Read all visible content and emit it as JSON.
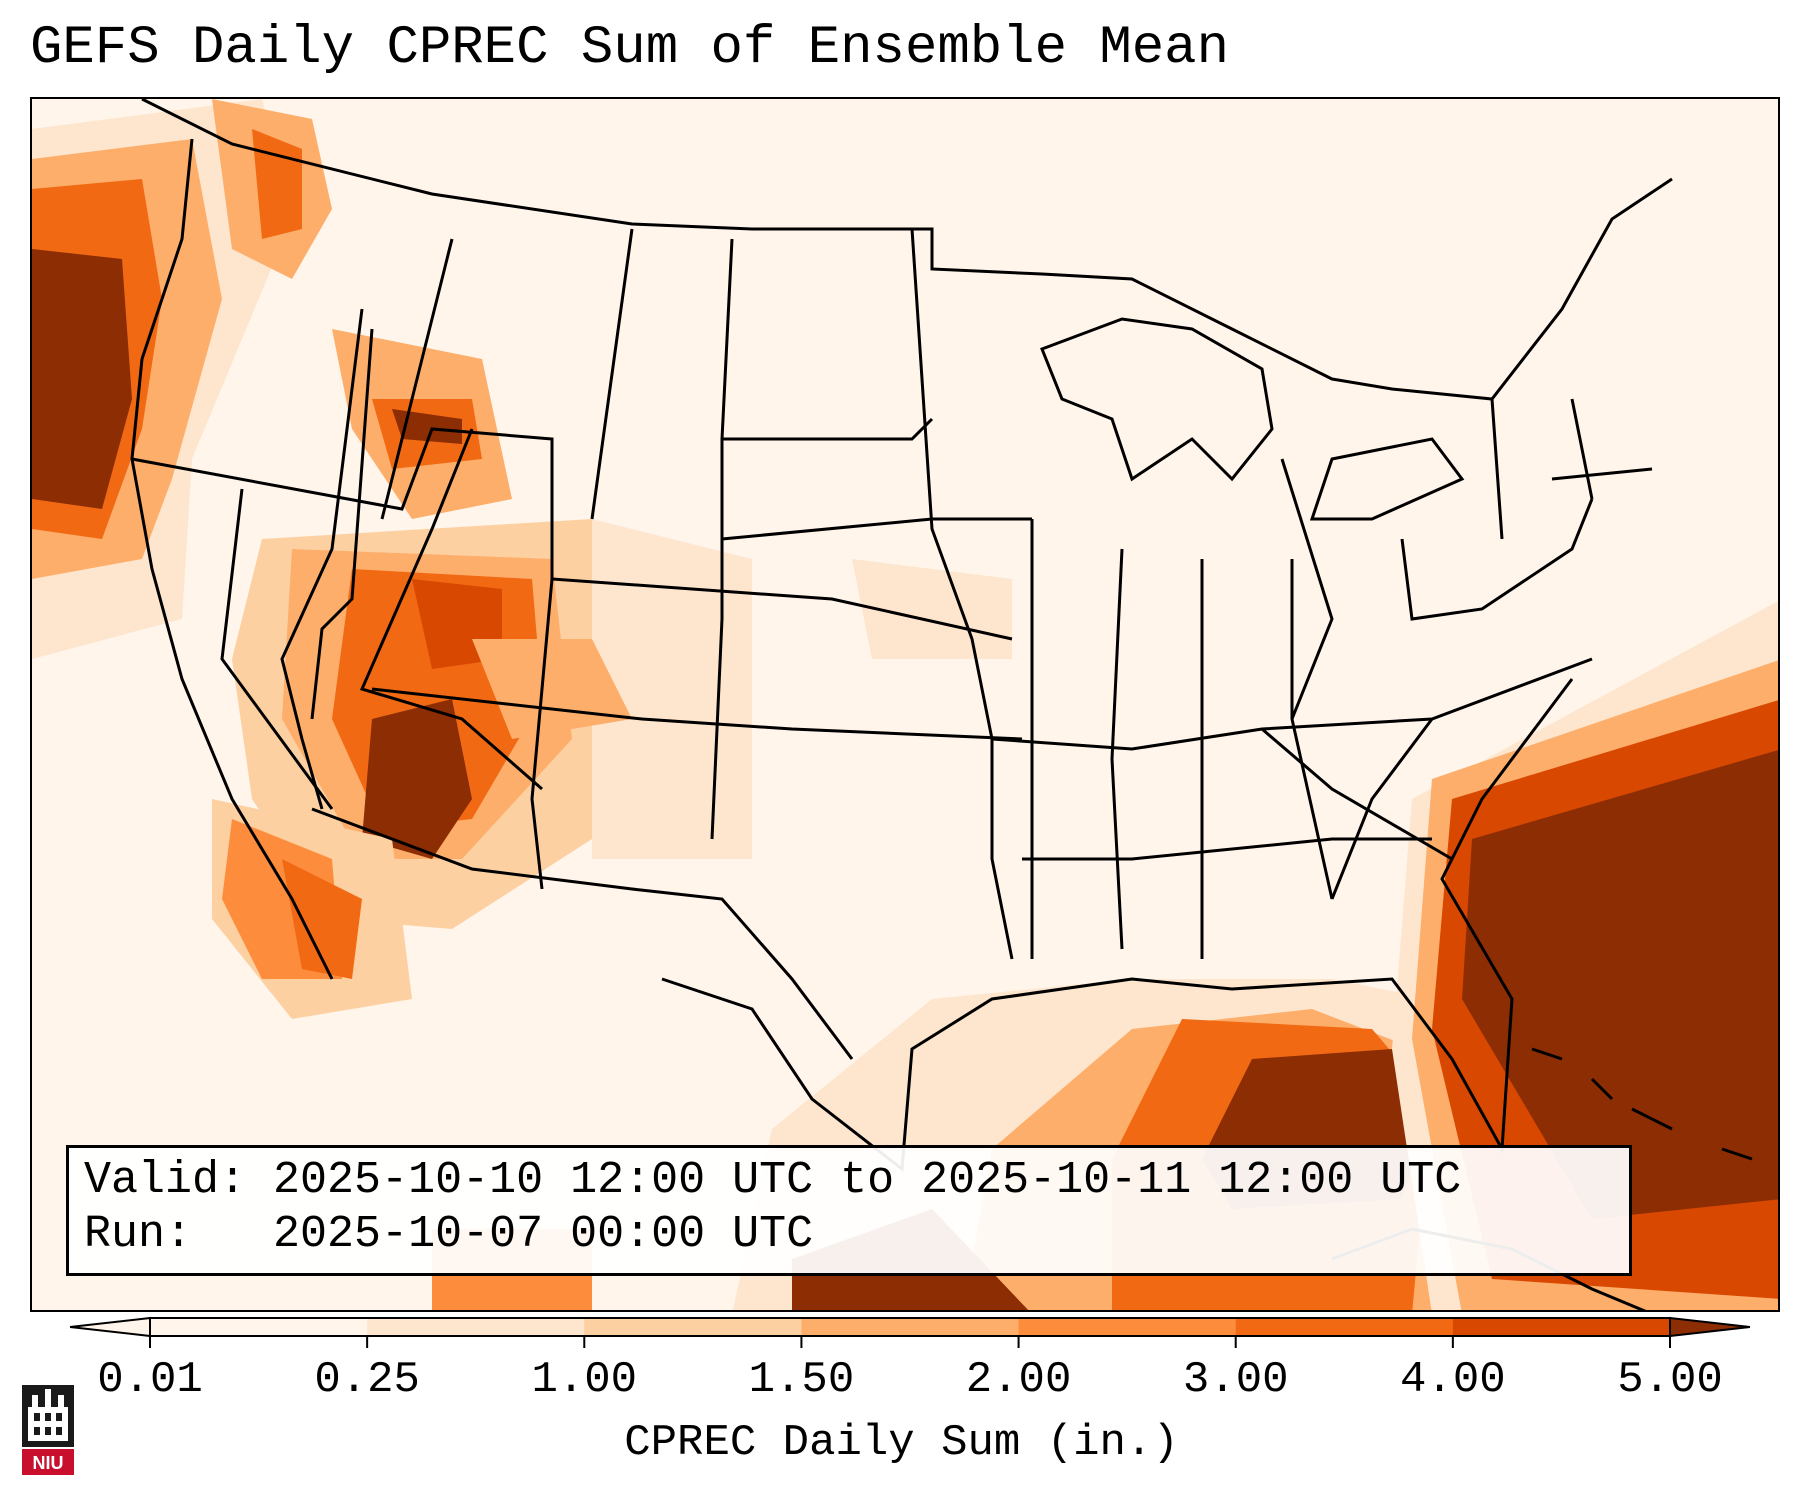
{
  "title": "GEFS Daily CPREC Sum of Ensemble Mean",
  "info": {
    "valid_label": "Valid:",
    "valid_value": "2025-10-10 12:00 UTC to 2025-10-11 12:00 UTC",
    "run_label": "Run:",
    "run_value": "2025-10-07 00:00 UTC"
  },
  "colorbar": {
    "label": "CPREC Daily Sum (in.)",
    "ticks": [
      "0.01",
      "0.25",
      "1.00",
      "1.50",
      "2.00",
      "3.00",
      "4.00",
      "5.00"
    ],
    "colors": [
      "#fff5eb",
      "#fee6ce",
      "#fdd0a2",
      "#fdae6b",
      "#fd8d3c",
      "#f16913",
      "#d94801",
      "#8c2d04"
    ],
    "extend": "both"
  },
  "logo": {
    "text": "NIU"
  }
}
